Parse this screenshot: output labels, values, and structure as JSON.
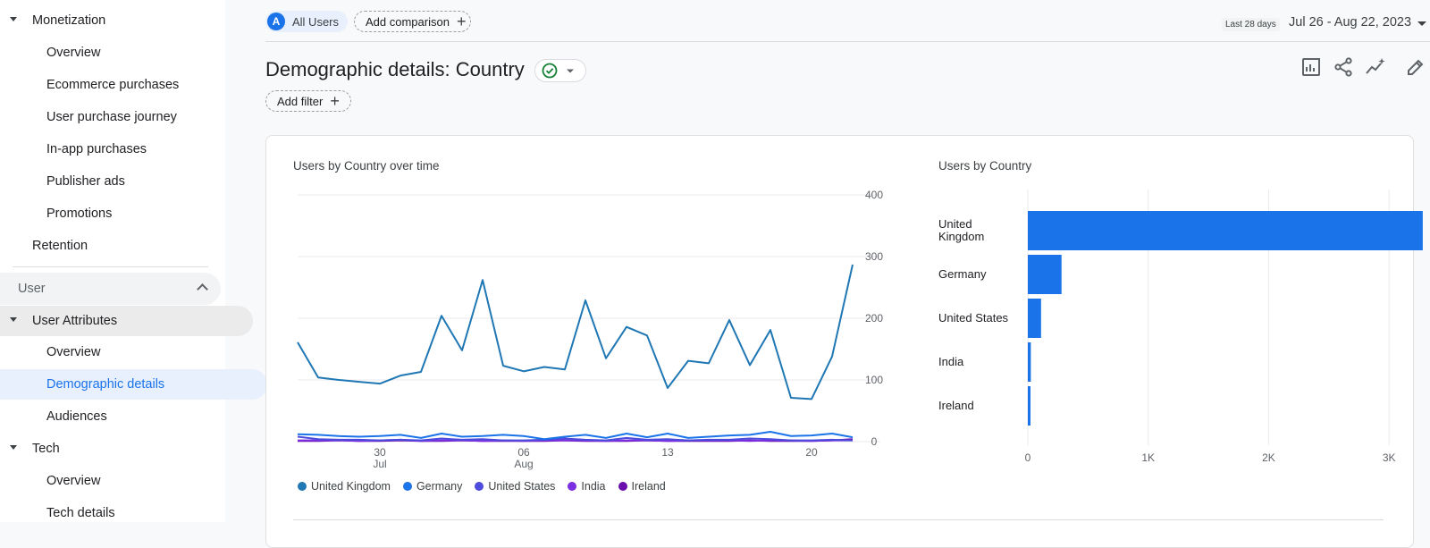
{
  "sidebar": {
    "monetization": "Monetization",
    "monetization_items": [
      "Overview",
      "Ecommerce purchases",
      "User purchase journey",
      "In-app purchases",
      "Publisher ads",
      "Promotions"
    ],
    "retention": "Retention",
    "user_section": "User",
    "user_attributes": "User Attributes",
    "user_attribute_items": [
      "Overview",
      "Demographic details",
      "Audiences"
    ],
    "tech": "Tech",
    "tech_items": [
      "Overview",
      "Tech details"
    ]
  },
  "header": {
    "segment_avatar": "A",
    "segment": "All Users",
    "add_comparison": "Add comparison",
    "date_prefix": "Last 28 days",
    "date_range": "Jul 26 - Aug 22, 2023",
    "page_title": "Demographic details: Country",
    "add_filter": "Add filter"
  },
  "colors": {
    "united_kingdom": "#1f77b4",
    "germany": "#1a73e8",
    "united_states": "#4b4bdc",
    "india": "#7b2fe0",
    "ireland": "#6a0dad",
    "bar": "#1a73e8",
    "active_nav": "#e8f0fe"
  },
  "icons": [
    "check-circle-icon",
    "customize-report-icon",
    "share-icon",
    "insights-icon",
    "edit-icon"
  ],
  "chart_data": [
    {
      "type": "line",
      "title": "Users by Country over time",
      "x_tick_labels": [
        [
          "30",
          "Jul"
        ],
        [
          "06",
          "Aug"
        ],
        [
          "13",
          ""
        ],
        [
          "20",
          ""
        ]
      ],
      "x": [
        "Jul 26",
        "Jul 27",
        "Jul 28",
        "Jul 29",
        "Jul 30",
        "Jul 31",
        "Aug 1",
        "Aug 2",
        "Aug 3",
        "Aug 4",
        "Aug 5",
        "Aug 6",
        "Aug 7",
        "Aug 8",
        "Aug 9",
        "Aug 10",
        "Aug 11",
        "Aug 12",
        "Aug 13",
        "Aug 14",
        "Aug 15",
        "Aug 16",
        "Aug 17",
        "Aug 18",
        "Aug 19",
        "Aug 20",
        "Aug 21",
        "Aug 22"
      ],
      "ylim": [
        0,
        400
      ],
      "y_ticks": [
        0,
        100,
        200,
        300,
        400
      ],
      "series": [
        {
          "name": "United Kingdom",
          "values": [
            161,
            104,
            100,
            97,
            94,
            107,
            113,
            204,
            148,
            262,
            123,
            114,
            121,
            117,
            229,
            135,
            186,
            172,
            87,
            131,
            127,
            197,
            124,
            181,
            71,
            69,
            138,
            287
          ]
        },
        {
          "name": "Germany",
          "values": [
            12,
            11,
            9,
            8,
            9,
            11,
            6,
            13,
            8,
            9,
            11,
            9,
            4,
            8,
            11,
            6,
            13,
            7,
            13,
            6,
            8,
            10,
            11,
            16,
            9,
            10,
            13,
            7
          ]
        },
        {
          "name": "United States",
          "values": [
            8,
            4,
            3,
            3,
            2,
            3,
            2,
            5,
            3,
            4,
            2,
            2,
            3,
            5,
            3,
            2,
            6,
            3,
            4,
            2,
            3,
            3,
            5,
            4,
            2,
            2,
            3,
            2
          ]
        },
        {
          "name": "India",
          "values": [
            2,
            2,
            2,
            1,
            2,
            3,
            1,
            2,
            2,
            1,
            2,
            1,
            2,
            2,
            2,
            1,
            2,
            2,
            1,
            2,
            2,
            2,
            1,
            2,
            2,
            1,
            2,
            2
          ]
        },
        {
          "name": "Ireland",
          "values": [
            1,
            1,
            2,
            1,
            1,
            2,
            1,
            1,
            2,
            1,
            1,
            1,
            1,
            2,
            1,
            1,
            1,
            2,
            1,
            1,
            1,
            1,
            2,
            1,
            1,
            1,
            2,
            4
          ]
        }
      ]
    },
    {
      "type": "bar",
      "orientation": "horizontal",
      "title": "Users by Country",
      "categories": [
        "United Kingdom",
        "Germany",
        "United States",
        "India",
        "Ireland"
      ],
      "category_lines": [
        [
          "United",
          "Kingdom"
        ],
        [
          "Germany"
        ],
        [
          "United States"
        ],
        [
          "India"
        ],
        [
          "Ireland"
        ]
      ],
      "values": [
        3280,
        280,
        110,
        25,
        20
      ],
      "xlim": [
        0,
        3600
      ],
      "x_ticks": [
        0,
        1000,
        2000,
        3000
      ],
      "x_tick_labels": [
        "0",
        "1K",
        "2K",
        "3K"
      ]
    }
  ]
}
